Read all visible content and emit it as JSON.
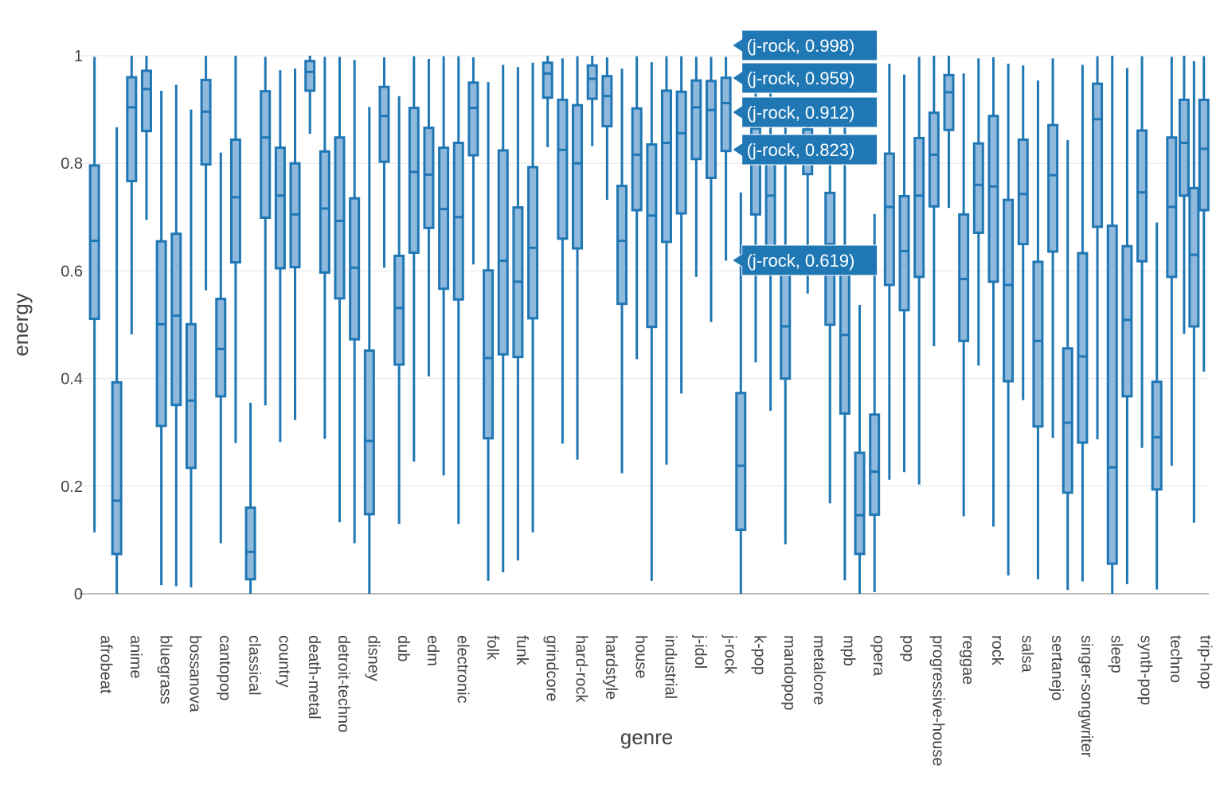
{
  "chart_data": {
    "type": "box",
    "title": "",
    "xlabel": "genre",
    "ylabel": "energy",
    "ylim": [
      0,
      1
    ],
    "yticks": [
      0,
      0.2,
      0.4,
      0.6,
      0.8,
      1
    ],
    "ytick_labels": [
      "0",
      "0.2",
      "0.4",
      "0.6",
      "0.8",
      "1"
    ],
    "colors": {
      "box_line": "#1f77b4",
      "box_fill": "#8fb8dd",
      "hover_bg": "#1f77b4",
      "hover_border": "#ffffff",
      "grid": "#e6e6e6",
      "text": "#444444"
    },
    "genres": [
      {
        "name": "afrobeat",
        "boxes": [
          {
            "min": 0.114,
            "q1": 0.511,
            "median": 0.656,
            "q3": 0.796,
            "max": 0.998
          }
        ]
      },
      {
        "name": "anime",
        "boxes": [
          {
            "min": 0.0,
            "q1": 0.074,
            "median": 0.173,
            "q3": 0.393,
            "max": 0.867
          },
          {
            "min": 0.482,
            "q1": 0.767,
            "median": 0.904,
            "q3": 0.96,
            "max": 1.0
          }
        ]
      },
      {
        "name": "bluegrass",
        "boxes": [
          {
            "min": 0.695,
            "q1": 0.86,
            "median": 0.938,
            "q3": 0.972,
            "max": 1.0
          },
          {
            "min": 0.016,
            "q1": 0.312,
            "median": 0.501,
            "q3": 0.655,
            "max": 0.935
          }
        ]
      },
      {
        "name": "bossanova",
        "boxes": [
          {
            "min": 0.014,
            "q1": 0.351,
            "median": 0.517,
            "q3": 0.669,
            "max": 0.946
          },
          {
            "min": 0.012,
            "q1": 0.234,
            "median": 0.359,
            "q3": 0.501,
            "max": 0.9
          }
        ]
      },
      {
        "name": "cantopop",
        "boxes": [
          {
            "min": 0.564,
            "q1": 0.798,
            "median": 0.896,
            "q3": 0.955,
            "max": 1.0
          },
          {
            "min": 0.094,
            "q1": 0.367,
            "median": 0.455,
            "q3": 0.548,
            "max": 0.82
          }
        ]
      },
      {
        "name": "classical",
        "boxes": [
          {
            "min": 0.28,
            "q1": 0.616,
            "median": 0.737,
            "q3": 0.844,
            "max": 1.0
          },
          {
            "min": 0.0,
            "q1": 0.027,
            "median": 0.078,
            "q3": 0.16,
            "max": 0.355
          }
        ]
      },
      {
        "name": "country",
        "boxes": [
          {
            "min": 0.35,
            "q1": 0.699,
            "median": 0.848,
            "q3": 0.934,
            "max": 0.998
          },
          {
            "min": 0.282,
            "q1": 0.605,
            "median": 0.74,
            "q3": 0.829,
            "max": 0.973
          }
        ]
      },
      {
        "name": "death-metal",
        "boxes": [
          {
            "min": 0.323,
            "q1": 0.607,
            "median": 0.705,
            "q3": 0.8,
            "max": 0.976
          },
          {
            "min": 0.855,
            "q1": 0.935,
            "median": 0.97,
            "q3": 0.99,
            "max": 1.0
          }
        ]
      },
      {
        "name": "detroit-techno",
        "boxes": [
          {
            "min": 0.288,
            "q1": 0.597,
            "median": 0.716,
            "q3": 0.822,
            "max": 0.998
          },
          {
            "min": 0.133,
            "q1": 0.549,
            "median": 0.693,
            "q3": 0.848,
            "max": 0.998
          }
        ]
      },
      {
        "name": "disney",
        "boxes": [
          {
            "min": 0.094,
            "q1": 0.473,
            "median": 0.606,
            "q3": 0.735,
            "max": 0.992
          },
          {
            "min": 0.0,
            "q1": 0.148,
            "median": 0.284,
            "q3": 0.452,
            "max": 0.905
          }
        ]
      },
      {
        "name": "dub",
        "boxes": [
          {
            "min": 0.606,
            "q1": 0.803,
            "median": 0.888,
            "q3": 0.942,
            "max": 0.997
          },
          {
            "min": 0.13,
            "q1": 0.426,
            "median": 0.531,
            "q3": 0.628,
            "max": 0.925
          }
        ]
      },
      {
        "name": "edm",
        "boxes": [
          {
            "min": 0.246,
            "q1": 0.634,
            "median": 0.784,
            "q3": 0.903,
            "max": 0.999
          },
          {
            "min": 0.404,
            "q1": 0.68,
            "median": 0.779,
            "q3": 0.866,
            "max": 0.994
          }
        ]
      },
      {
        "name": "electronic",
        "boxes": [
          {
            "min": 0.22,
            "q1": 0.567,
            "median": 0.715,
            "q3": 0.829,
            "max": 0.999
          },
          {
            "min": 0.13,
            "q1": 0.547,
            "median": 0.7,
            "q3": 0.838,
            "max": 0.999
          }
        ]
      },
      {
        "name": "folk",
        "boxes": [
          {
            "min": 0.612,
            "q1": 0.815,
            "median": 0.903,
            "q3": 0.95,
            "max": 0.997
          },
          {
            "min": 0.024,
            "q1": 0.289,
            "median": 0.438,
            "q3": 0.601,
            "max": 0.951
          }
        ]
      },
      {
        "name": "funk",
        "boxes": [
          {
            "min": 0.04,
            "q1": 0.445,
            "median": 0.619,
            "q3": 0.824,
            "max": 0.983
          },
          {
            "min": 0.062,
            "q1": 0.44,
            "median": 0.58,
            "q3": 0.718,
            "max": 0.979
          }
        ]
      },
      {
        "name": "grindcore",
        "boxes": [
          {
            "min": 0.114,
            "q1": 0.512,
            "median": 0.643,
            "q3": 0.793,
            "max": 0.987
          },
          {
            "min": 0.83,
            "q1": 0.922,
            "median": 0.967,
            "q3": 0.987,
            "max": 1.0
          }
        ]
      },
      {
        "name": "hard-rock",
        "boxes": [
          {
            "min": 0.279,
            "q1": 0.66,
            "median": 0.825,
            "q3": 0.918,
            "max": 0.995
          },
          {
            "min": 0.249,
            "q1": 0.642,
            "median": 0.8,
            "q3": 0.908,
            "max": 0.999
          }
        ]
      },
      {
        "name": "hardstyle",
        "boxes": [
          {
            "min": 0.832,
            "q1": 0.92,
            "median": 0.957,
            "q3": 0.982,
            "max": 1.0
          },
          {
            "min": 0.732,
            "q1": 0.869,
            "median": 0.925,
            "q3": 0.962,
            "max": 0.997
          }
        ]
      },
      {
        "name": "house",
        "boxes": [
          {
            "min": 0.224,
            "q1": 0.539,
            "median": 0.656,
            "q3": 0.758,
            "max": 0.976
          },
          {
            "min": 0.436,
            "q1": 0.713,
            "median": 0.816,
            "q3": 0.902,
            "max": 0.999
          }
        ]
      },
      {
        "name": "industrial",
        "boxes": [
          {
            "min": 0.024,
            "q1": 0.496,
            "median": 0.703,
            "q3": 0.835,
            "max": 0.988
          },
          {
            "min": 0.24,
            "q1": 0.654,
            "median": 0.838,
            "q3": 0.935,
            "max": 0.999
          }
        ]
      },
      {
        "name": "j-idol",
        "boxes": [
          {
            "min": 0.372,
            "q1": 0.707,
            "median": 0.856,
            "q3": 0.933,
            "max": 0.999
          },
          {
            "min": 0.589,
            "q1": 0.808,
            "median": 0.904,
            "q3": 0.954,
            "max": 0.998
          }
        ]
      },
      {
        "name": "j-rock",
        "boxes": [
          {
            "min": 0.505,
            "q1": 0.773,
            "median": 0.899,
            "q3": 0.953,
            "max": 0.998
          },
          {
            "min": 0.619,
            "q1": 0.823,
            "median": 0.912,
            "q3": 0.959,
            "max": 0.998
          }
        ]
      },
      {
        "name": "k-pop",
        "boxes": [
          {
            "min": 0.0,
            "q1": 0.119,
            "median": 0.238,
            "q3": 0.373,
            "max": 0.746
          },
          {
            "min": 0.43,
            "q1": 0.705,
            "median": 0.8,
            "q3": 0.865,
            "max": 0.98
          }
        ]
      },
      {
        "name": "mandopop",
        "boxes": [
          {
            "min": 0.34,
            "q1": 0.626,
            "median": 0.74,
            "q3": 0.83,
            "max": 0.968
          },
          {
            "min": 0.092,
            "q1": 0.4,
            "median": 0.497,
            "q3": 0.612,
            "max": 0.893
          }
        ]
      },
      {
        "name": "metalcore",
        "boxes": [
          {
            "min": 0.558,
            "q1": 0.78,
            "median": 0.845,
            "q3": 0.863,
            "max": 0.87
          }
        ]
      },
      {
        "name": "mpb",
        "boxes": [
          {
            "min": 0.168,
            "q1": 0.5,
            "median": 0.65,
            "q3": 0.745,
            "max": 0.88
          },
          {
            "min": 0.025,
            "q1": 0.335,
            "median": 0.481,
            "q3": 0.625,
            "max": 0.87
          }
        ]
      },
      {
        "name": "opera",
        "boxes": [
          {
            "min": 0.0,
            "q1": 0.074,
            "median": 0.146,
            "q3": 0.262,
            "max": 0.537
          },
          {
            "min": 0.003,
            "q1": 0.147,
            "median": 0.227,
            "q3": 0.333,
            "max": 0.706
          }
        ]
      },
      {
        "name": "pop",
        "boxes": [
          {
            "min": 0.212,
            "q1": 0.574,
            "median": 0.719,
            "q3": 0.818,
            "max": 0.985
          },
          {
            "min": 0.226,
            "q1": 0.527,
            "median": 0.637,
            "q3": 0.739,
            "max": 0.965
          }
        ]
      },
      {
        "name": "progressive-house",
        "boxes": [
          {
            "min": 0.203,
            "q1": 0.589,
            "median": 0.74,
            "q3": 0.847,
            "max": 0.998
          },
          {
            "min": 0.46,
            "q1": 0.72,
            "median": 0.816,
            "q3": 0.894,
            "max": 1.0
          }
        ]
      },
      {
        "name": "reggae",
        "boxes": [
          {
            "min": 0.717,
            "q1": 0.862,
            "median": 0.932,
            "q3": 0.964,
            "max": 1.0
          },
          {
            "min": 0.144,
            "q1": 0.47,
            "median": 0.585,
            "q3": 0.705,
            "max": 0.967
          }
        ]
      },
      {
        "name": "rock",
        "boxes": [
          {
            "min": 0.424,
            "q1": 0.671,
            "median": 0.76,
            "q3": 0.837,
            "max": 0.995
          },
          {
            "min": 0.125,
            "q1": 0.58,
            "median": 0.757,
            "q3": 0.888,
            "max": 0.997
          }
        ]
      },
      {
        "name": "salsa",
        "boxes": [
          {
            "min": 0.034,
            "q1": 0.395,
            "median": 0.574,
            "q3": 0.732,
            "max": 0.985
          },
          {
            "min": 0.36,
            "q1": 0.65,
            "median": 0.743,
            "q3": 0.844,
            "max": 0.982
          }
        ]
      },
      {
        "name": "sertanejo",
        "boxes": [
          {
            "min": 0.027,
            "q1": 0.311,
            "median": 0.47,
            "q3": 0.617,
            "max": 0.954
          },
          {
            "min": 0.29,
            "q1": 0.636,
            "median": 0.778,
            "q3": 0.871,
            "max": 0.995
          }
        ]
      },
      {
        "name": "singer-songwriter",
        "boxes": [
          {
            "min": 0.007,
            "q1": 0.188,
            "median": 0.318,
            "q3": 0.456,
            "max": 0.843
          },
          {
            "min": 0.023,
            "q1": 0.281,
            "median": 0.441,
            "q3": 0.633,
            "max": 0.983
          }
        ]
      },
      {
        "name": "sleep",
        "boxes": [
          {
            "min": 0.287,
            "q1": 0.682,
            "median": 0.882,
            "q3": 0.948,
            "max": 0.999
          },
          {
            "min": 0.0,
            "q1": 0.056,
            "median": 0.235,
            "q3": 0.684,
            "max": 1.0
          }
        ]
      },
      {
        "name": "synth-pop",
        "boxes": [
          {
            "min": 0.018,
            "q1": 0.367,
            "median": 0.509,
            "q3": 0.646,
            "max": 0.977
          },
          {
            "min": 0.271,
            "q1": 0.618,
            "median": 0.746,
            "q3": 0.861,
            "max": 0.999
          }
        ]
      },
      {
        "name": "techno",
        "boxes": [
          {
            "min": 0.008,
            "q1": 0.194,
            "median": 0.291,
            "q3": 0.394,
            "max": 0.69
          },
          {
            "min": 0.238,
            "q1": 0.589,
            "median": 0.719,
            "q3": 0.848,
            "max": 0.998
          }
        ]
      },
      {
        "name": "trip-hop",
        "boxes": [
          {
            "min": 0.483,
            "q1": 0.74,
            "median": 0.838,
            "q3": 0.918,
            "max": 1.0
          },
          {
            "min": 0.132,
            "q1": 0.497,
            "median": 0.63,
            "q3": 0.754,
            "max": 0.99
          },
          {
            "min": 0.413,
            "q1": 0.713,
            "median": 0.827,
            "q3": 0.918,
            "max": 0.999
          }
        ]
      }
    ],
    "hover_labels": [
      {
        "text": "(j-rock, 0.998)",
        "value": 0.998
      },
      {
        "text": "(j-rock, 0.959)",
        "value": 0.959
      },
      {
        "text": "(j-rock, 0.912)",
        "value": 0.912
      },
      {
        "text": "(j-rock, 0.823)",
        "value": 0.823
      },
      {
        "text": "(j-rock, 0.619)",
        "value": 0.619
      }
    ]
  }
}
